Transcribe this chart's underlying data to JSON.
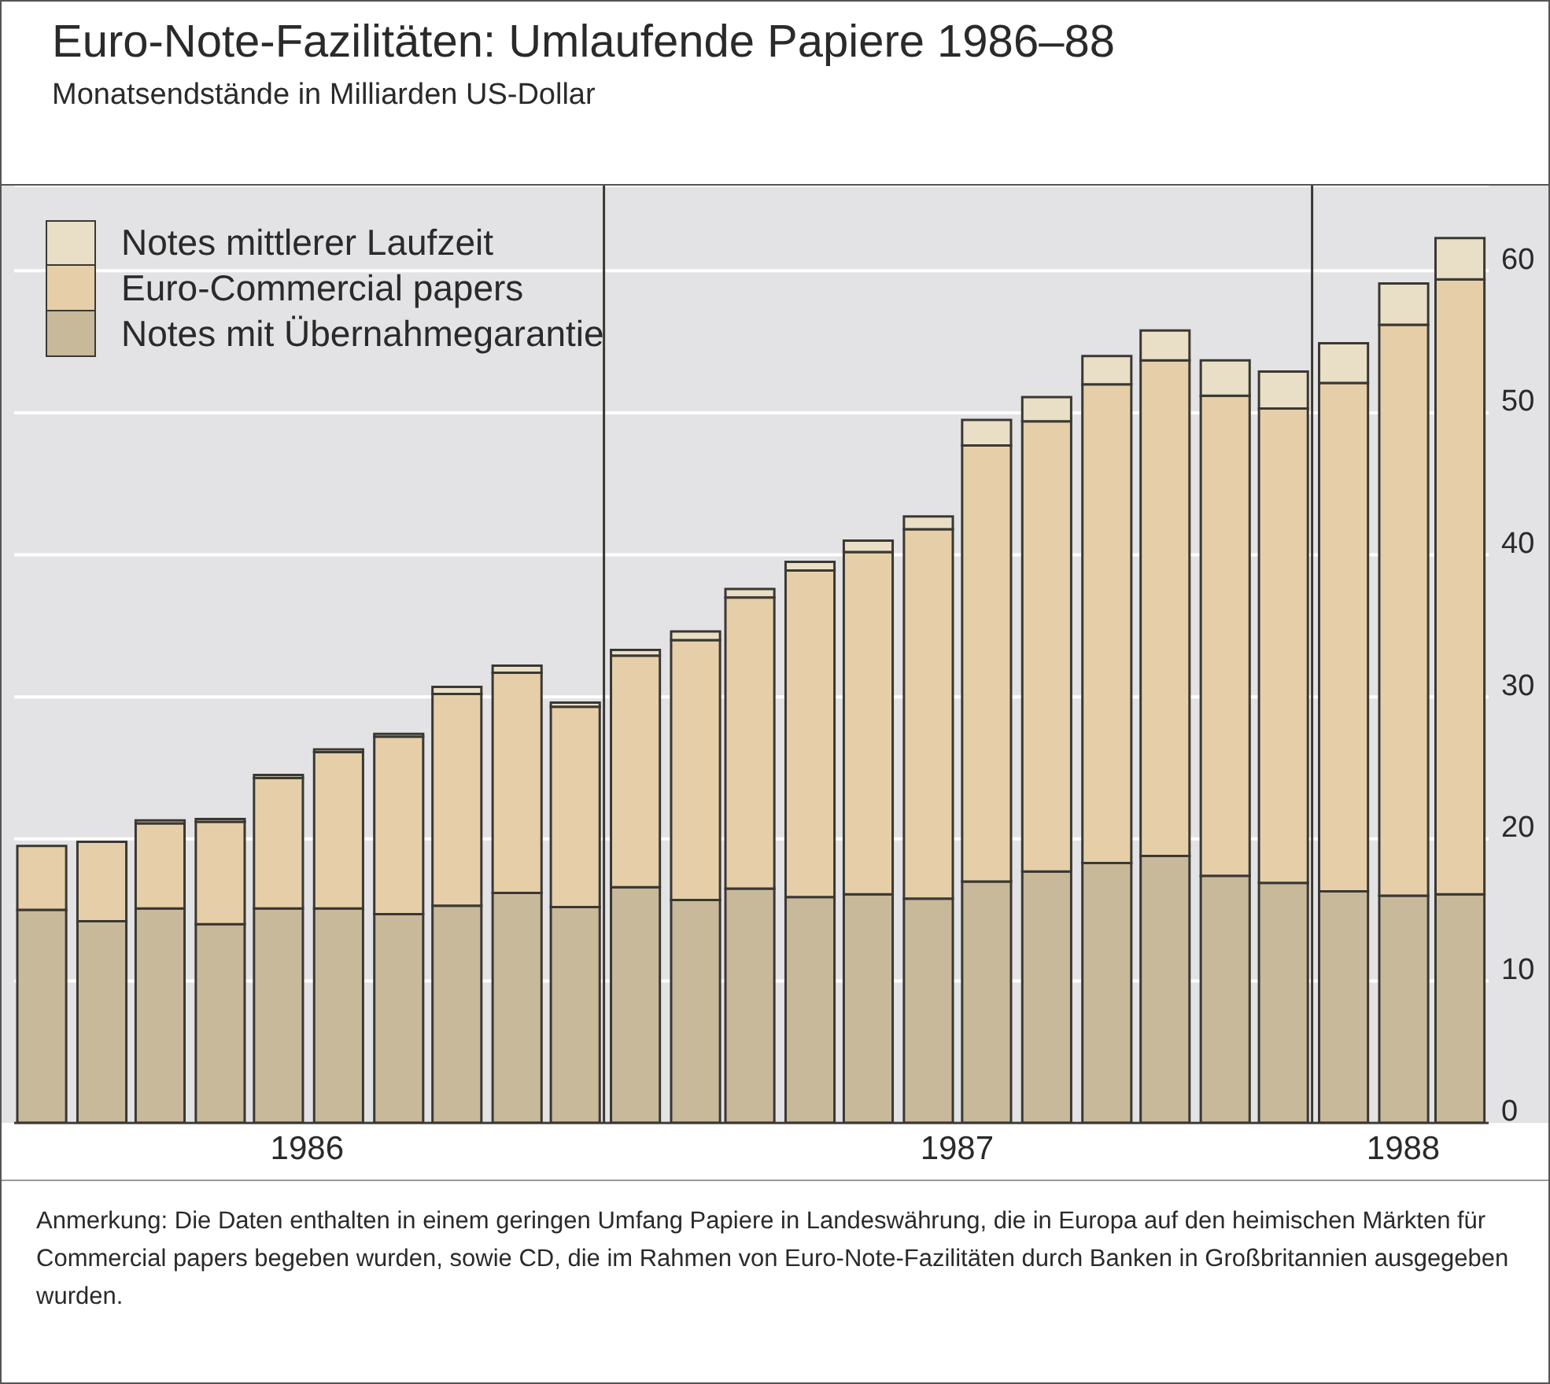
{
  "chart_data": {
    "type": "bar",
    "title": "Euro-Note-Fazilitäten: Umlaufende Papiere 1986–88",
    "subtitle": "Monatsendstände in Milliarden US-Dollar",
    "x": [
      "1986-03",
      "1986-04",
      "1986-05",
      "1986-06",
      "1986-07",
      "1986-08",
      "1986-09",
      "1986-10",
      "1986-11",
      "1986-12",
      "1987-01",
      "1987-02",
      "1987-03",
      "1987-04",
      "1987-05",
      "1987-06",
      "1987-07",
      "1987-08",
      "1987-09",
      "1987-10",
      "1987-11",
      "1987-12",
      "1988-01",
      "1988-02",
      "1988-03"
    ],
    "xlim": [
      "1986-02-15",
      "1988-03-16"
    ],
    "xticks": [
      {
        "value": "1986-07-16",
        "label": "1986"
      },
      {
        "value": "1987-06-16",
        "label": "1987"
      },
      {
        "value": "1988-02",
        "label": "1988"
      }
    ],
    "series": [
      {
        "name": "Notes mit Übernahmegarantie",
        "color": "#c8b99b",
        "values": [
          15.0,
          14.2,
          15.1,
          14.0,
          15.1,
          15.1,
          14.7,
          15.3,
          16.2,
          15.2,
          16.6,
          15.7,
          16.5,
          15.9,
          16.1,
          15.8,
          17.0,
          17.7,
          18.3,
          18.8,
          17.4,
          16.9,
          16.3,
          16.0,
          16.1
        ]
      },
      {
        "name": "Euro-Commercial papers",
        "color": "#e6cfa8",
        "values": [
          4.5,
          5.6,
          6.0,
          7.2,
          9.2,
          11.0,
          12.5,
          14.9,
          15.5,
          14.1,
          16.3,
          18.3,
          20.5,
          23.0,
          24.1,
          26.0,
          30.7,
          31.7,
          33.7,
          34.9,
          33.8,
          33.4,
          35.8,
          40.2,
          43.3
        ]
      },
      {
        "name": "Notes mittlerer Laufzeit",
        "color": "#e9dfc6",
        "values": [
          0,
          0,
          0.2,
          0.2,
          0.2,
          0.2,
          0.2,
          0.5,
          0.5,
          0.3,
          0.4,
          0.6,
          0.6,
          0.6,
          0.8,
          0.9,
          1.8,
          1.7,
          2.0,
          2.1,
          2.5,
          2.6,
          2.8,
          2.9,
          2.9
        ]
      }
    ],
    "stacked": true,
    "ylim": [
      0,
      66
    ],
    "yticks": [
      0,
      10,
      20,
      30,
      40,
      50,
      60
    ],
    "grid": "y",
    "legend": "top left",
    "ref_lines": [
      {
        "axis": "x",
        "value": "1986-12-16"
      },
      {
        "axis": "x",
        "value": "1987-12-16"
      }
    ],
    "annotations": [
      "Anmerkung: Die Daten enthalten in einem geringen Umfang Papiere in Landeswährung, die in Europa auf den heimischen Märkten für Commercial papers begeben wurden, sowie CD, die im Rahmen von Euro-Note-Fazilitäten durch Banken in Großbritannien ausgegeben wurden."
    ]
  }
}
